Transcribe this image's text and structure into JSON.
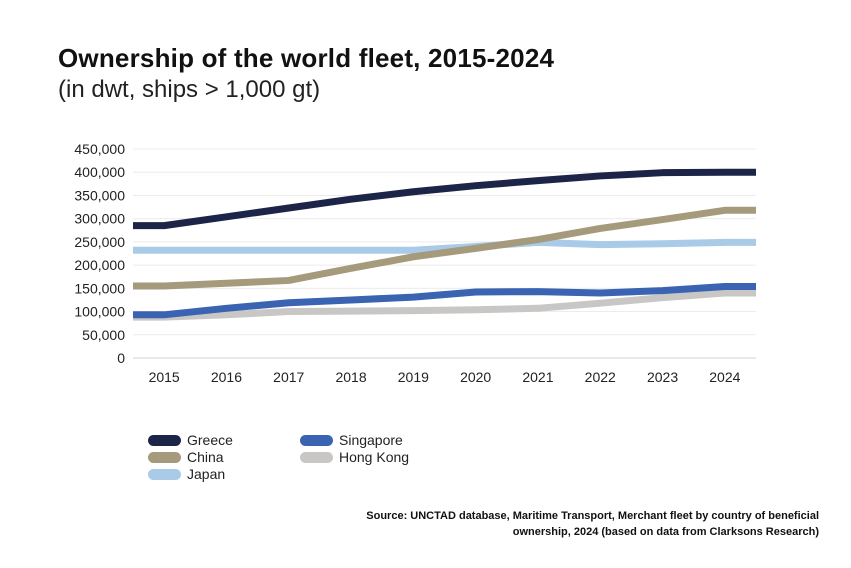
{
  "title": "Ownership of the world fleet, 2015-2024",
  "subtitle": "(in dwt, ships > 1,000 gt)",
  "source": "Source: UNCTAD database, Maritime Transport, Merchant fleet by country of beneficial ownership, 2024 (based on data from Clarksons Research)",
  "chart_data": {
    "type": "line",
    "title": "Ownership of the world fleet, 2015-2024",
    "subtitle": "(in dwt, ships > 1,000 gt)",
    "xlabel": "",
    "ylabel": "",
    "categories": [
      "2015",
      "2016",
      "2017",
      "2018",
      "2019",
      "2020",
      "2021",
      "2022",
      "2023",
      "2024"
    ],
    "ylim": [
      0,
      450000
    ],
    "yticks": [
      "450,000",
      "400,000",
      "350,000",
      "300,000",
      "250,000",
      "200,000",
      "150,000",
      "100,000",
      "50,000",
      "0"
    ],
    "grid": true,
    "legend": "bottom-left",
    "series": [
      {
        "name": "Greece",
        "color": "#1c2447",
        "values": [
          285000,
          304000,
          323000,
          342000,
          358000,
          371000,
          382000,
          392000,
          399000,
          400000
        ]
      },
      {
        "name": "China",
        "color": "#a69a7c",
        "values": [
          155000,
          161000,
          167000,
          193000,
          218000,
          236000,
          255000,
          279000,
          298000,
          318000
        ]
      },
      {
        "name": "Japan",
        "color": "#a9cbe7",
        "values": [
          232000,
          232000,
          232000,
          232000,
          232000,
          240000,
          249000,
          244000,
          246000,
          249000
        ]
      },
      {
        "name": "Singapore",
        "color": "#3a63b2",
        "values": [
          93000,
          107000,
          119000,
          125000,
          131000,
          142000,
          143000,
          140000,
          145000,
          154000
        ]
      },
      {
        "name": "Hong Kong",
        "color": "#c8c7c6",
        "values": [
          88000,
          93000,
          100000,
          101000,
          102000,
          104000,
          107000,
          118000,
          130000,
          140000
        ]
      }
    ]
  }
}
